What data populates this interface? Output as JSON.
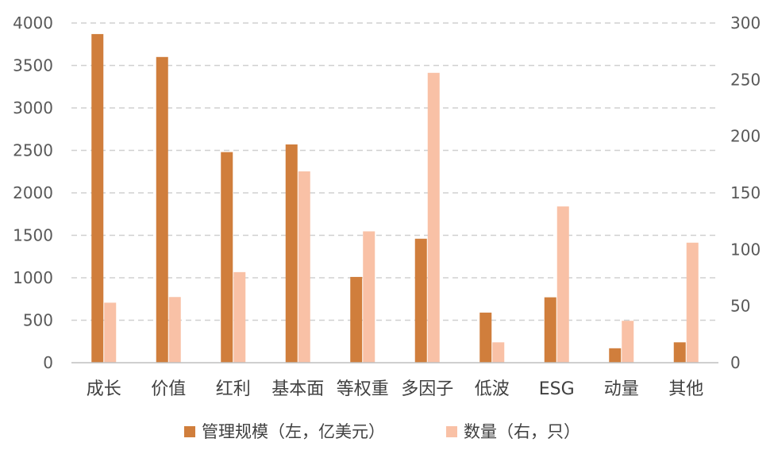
{
  "chart_data": {
    "type": "bar",
    "categories": [
      "成长",
      "价值",
      "红利",
      "基本面",
      "等权重",
      "多因子",
      "低波",
      "ESG",
      "动量",
      "其他"
    ],
    "series": [
      {
        "name": "管理规模（左，亿美元）",
        "axis": "left",
        "color": "#D07E3C",
        "values": [
          3870,
          3600,
          2480,
          2570,
          1010,
          1460,
          590,
          770,
          170,
          240
        ]
      },
      {
        "name": "数量（右，只）",
        "axis": "right",
        "color": "#F9C1A6",
        "values": [
          53,
          58,
          80,
          169,
          116,
          256,
          18,
          138,
          37,
          106
        ]
      }
    ],
    "ylim_left": [
      0,
      4000
    ],
    "yticks_left": [
      "0",
      "500",
      "1000",
      "1500",
      "2000",
      "2500",
      "3000",
      "3500",
      "4000"
    ],
    "ylim_right": [
      0,
      300
    ],
    "yticks_right": [
      "0",
      "50",
      "100",
      "150",
      "200",
      "250",
      "300"
    ],
    "grid": true,
    "legend_position": "bottom"
  }
}
